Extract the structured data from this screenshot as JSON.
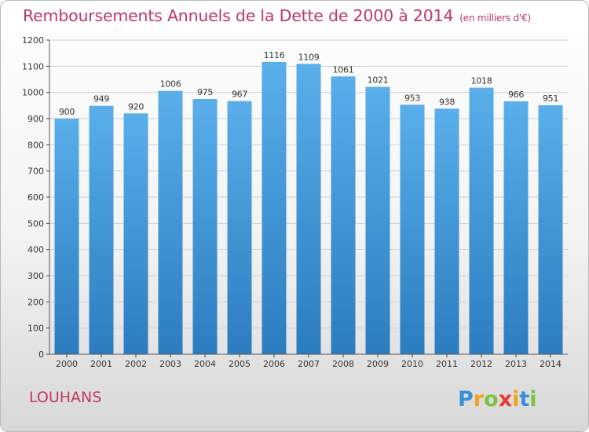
{
  "title": "Remboursements Annuels de la Dette de 2000 à 2014",
  "subtitle": "(en milliers d'€)",
  "city": "LOUHANS",
  "brand": "Proxiti",
  "colors": {
    "title": "#c03a5e",
    "bar_top": "#5aaeea",
    "bar_bottom": "#2b7dc0"
  },
  "chart_data": {
    "type": "bar",
    "title": "Remboursements Annuels de la Dette de 2000 à 2014",
    "xlabel": "",
    "ylabel": "",
    "ylim": [
      0,
      1200
    ],
    "yticks": [
      0,
      100,
      200,
      300,
      400,
      500,
      600,
      700,
      800,
      900,
      1000,
      1100,
      1200
    ],
    "grid": true,
    "categories": [
      "2000",
      "2001",
      "2002",
      "2003",
      "2004",
      "2005",
      "2006",
      "2007",
      "2008",
      "2009",
      "2010",
      "2011",
      "2012",
      "2013",
      "2014"
    ],
    "values": [
      900,
      949,
      920,
      1006,
      975,
      967,
      1116,
      1109,
      1061,
      1021,
      953,
      938,
      1018,
      966,
      951
    ]
  }
}
